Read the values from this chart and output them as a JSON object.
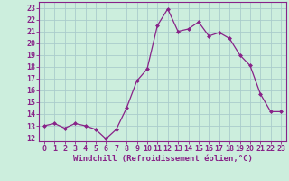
{
  "x": [
    0,
    1,
    2,
    3,
    4,
    5,
    6,
    7,
    8,
    9,
    10,
    11,
    12,
    13,
    14,
    15,
    16,
    17,
    18,
    19,
    20,
    21,
    22,
    23
  ],
  "y": [
    13.0,
    13.2,
    12.8,
    13.2,
    13.0,
    12.7,
    11.9,
    12.7,
    14.5,
    16.8,
    17.8,
    21.5,
    22.9,
    21.0,
    21.2,
    21.8,
    20.6,
    20.9,
    20.4,
    19.0,
    18.1,
    15.7,
    14.2,
    14.2
  ],
  "line_color": "#882288",
  "marker": "D",
  "marker_size": 2.0,
  "bg_color": "#cceedd",
  "grid_color": "#aacccc",
  "xlabel": "Windchill (Refroidissement éolien,°C)",
  "ylabel_ticks": [
    12,
    13,
    14,
    15,
    16,
    17,
    18,
    19,
    20,
    21,
    22,
    23
  ],
  "xtick_labels": [
    "0",
    "1",
    "2",
    "3",
    "4",
    "5",
    "6",
    "7",
    "8",
    "9",
    "10",
    "11",
    "12",
    "13",
    "14",
    "15",
    "16",
    "17",
    "18",
    "19",
    "20",
    "21",
    "22",
    "23"
  ],
  "ylim": [
    11.7,
    23.5
  ],
  "xlim": [
    -0.5,
    23.5
  ],
  "axis_label_fontsize": 6.5,
  "tick_fontsize": 6.0
}
